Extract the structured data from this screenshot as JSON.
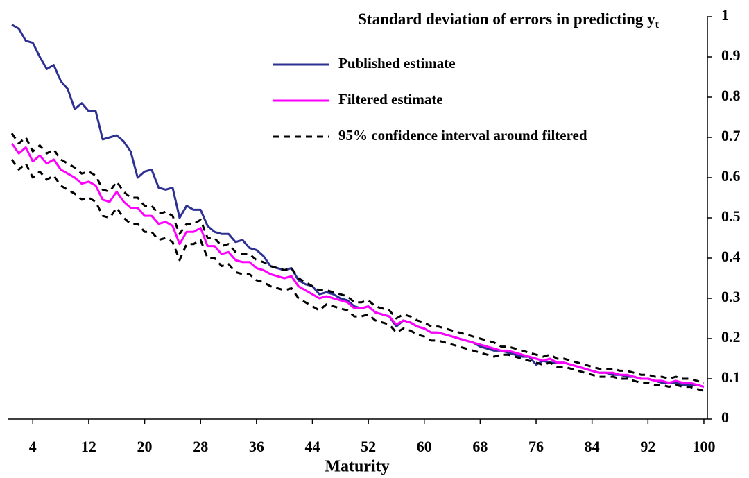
{
  "chart_data": {
    "type": "line",
    "title": "Standard deviation of errors in predicting y",
    "title_subscript": "t",
    "x_label": "Maturity",
    "xlim": [
      0.5,
      100.5
    ],
    "xticks": [
      4,
      12,
      20,
      28,
      36,
      44,
      52,
      60,
      68,
      76,
      84,
      92,
      100
    ],
    "ylim": [
      0,
      1
    ],
    "yticks": [
      0,
      0.1,
      0.2,
      0.3,
      0.4,
      0.5,
      0.6,
      0.7,
      0.8,
      0.9,
      1
    ],
    "y_axis_side": "right",
    "legend": "top-center",
    "x": [
      1,
      2,
      3,
      4,
      5,
      6,
      7,
      8,
      9,
      10,
      11,
      12,
      13,
      14,
      15,
      16,
      17,
      18,
      19,
      20,
      21,
      22,
      23,
      24,
      25,
      26,
      27,
      28,
      29,
      30,
      31,
      32,
      33,
      34,
      35,
      36,
      37,
      38,
      39,
      40,
      41,
      42,
      43,
      44,
      45,
      46,
      47,
      48,
      49,
      50,
      51,
      52,
      53,
      54,
      55,
      56,
      57,
      58,
      59,
      60,
      61,
      62,
      63,
      64,
      65,
      66,
      67,
      68,
      69,
      70,
      71,
      72,
      73,
      74,
      75,
      76,
      77,
      78,
      79,
      80,
      81,
      82,
      83,
      84,
      85,
      86,
      87,
      88,
      89,
      90,
      91,
      92,
      93,
      94,
      95,
      96,
      97,
      98,
      99,
      100
    ],
    "series": [
      {
        "name": "Published estimate",
        "color": "#2e3192",
        "values": [
          0.98,
          0.97,
          0.94,
          0.935,
          0.9,
          0.87,
          0.88,
          0.84,
          0.82,
          0.77,
          0.785,
          0.765,
          0.765,
          0.695,
          0.7,
          0.705,
          0.69,
          0.665,
          0.6,
          0.615,
          0.62,
          0.575,
          0.57,
          0.575,
          0.5,
          0.53,
          0.52,
          0.52,
          0.48,
          0.465,
          0.46,
          0.46,
          0.44,
          0.445,
          0.425,
          0.42,
          0.405,
          0.38,
          0.375,
          0.37,
          0.375,
          0.345,
          0.335,
          0.33,
          0.31,
          0.315,
          0.31,
          0.3,
          0.295,
          0.28,
          0.275,
          0.28,
          0.265,
          0.26,
          0.255,
          0.23,
          0.245,
          0.24,
          0.23,
          0.225,
          0.215,
          0.215,
          0.21,
          0.205,
          0.2,
          0.195,
          0.19,
          0.18,
          0.175,
          0.17,
          0.17,
          0.165,
          0.16,
          0.155,
          0.155,
          0.135,
          0.145,
          0.14,
          0.14,
          0.14,
          0.135,
          0.13,
          0.125,
          0.12,
          0.115,
          0.115,
          0.11,
          0.11,
          0.105,
          0.105,
          0.1,
          0.1,
          0.095,
          0.09,
          0.09,
          0.09,
          0.085,
          0.085,
          0.085,
          0.08
        ]
      },
      {
        "name": "Filtered estimate",
        "color": "#ff00ff",
        "values": [
          0.685,
          0.66,
          0.675,
          0.64,
          0.655,
          0.635,
          0.645,
          0.62,
          0.61,
          0.6,
          0.585,
          0.59,
          0.58,
          0.545,
          0.54,
          0.565,
          0.54,
          0.525,
          0.525,
          0.505,
          0.505,
          0.485,
          0.49,
          0.48,
          0.435,
          0.465,
          0.465,
          0.475,
          0.43,
          0.43,
          0.41,
          0.415,
          0.395,
          0.39,
          0.39,
          0.375,
          0.37,
          0.36,
          0.355,
          0.35,
          0.355,
          0.33,
          0.32,
          0.31,
          0.3,
          0.305,
          0.3,
          0.295,
          0.29,
          0.275,
          0.275,
          0.28,
          0.265,
          0.26,
          0.255,
          0.235,
          0.245,
          0.24,
          0.23,
          0.225,
          0.215,
          0.215,
          0.21,
          0.205,
          0.2,
          0.195,
          0.19,
          0.185,
          0.18,
          0.175,
          0.17,
          0.17,
          0.165,
          0.16,
          0.155,
          0.15,
          0.145,
          0.15,
          0.14,
          0.14,
          0.135,
          0.13,
          0.125,
          0.12,
          0.115,
          0.115,
          0.115,
          0.11,
          0.11,
          0.105,
          0.1,
          0.1,
          0.095,
          0.095,
          0.09,
          0.095,
          0.09,
          0.09,
          0.085,
          0.08
        ]
      },
      {
        "name": "95% confidence interval around filtered",
        "color": "#000000",
        "dashed": true,
        "upper": [
          0.71,
          0.685,
          0.7,
          0.665,
          0.68,
          0.66,
          0.67,
          0.645,
          0.635,
          0.625,
          0.61,
          0.615,
          0.605,
          0.57,
          0.565,
          0.59,
          0.565,
          0.55,
          0.55,
          0.53,
          0.53,
          0.51,
          0.515,
          0.505,
          0.46,
          0.485,
          0.485,
          0.495,
          0.45,
          0.45,
          0.43,
          0.435,
          0.415,
          0.41,
          0.41,
          0.395,
          0.39,
          0.38,
          0.375,
          0.37,
          0.375,
          0.35,
          0.34,
          0.33,
          0.32,
          0.32,
          0.315,
          0.31,
          0.305,
          0.29,
          0.29,
          0.295,
          0.28,
          0.275,
          0.27,
          0.25,
          0.26,
          0.255,
          0.245,
          0.24,
          0.23,
          0.23,
          0.225,
          0.22,
          0.215,
          0.21,
          0.205,
          0.2,
          0.195,
          0.19,
          0.18,
          0.18,
          0.175,
          0.17,
          0.165,
          0.16,
          0.155,
          0.16,
          0.15,
          0.15,
          0.145,
          0.14,
          0.135,
          0.13,
          0.125,
          0.125,
          0.125,
          0.12,
          0.12,
          0.115,
          0.11,
          0.11,
          0.105,
          0.105,
          0.1,
          0.105,
          0.1,
          0.1,
          0.095,
          0.09
        ],
        "lower": [
          0.645,
          0.62,
          0.635,
          0.6,
          0.615,
          0.595,
          0.605,
          0.58,
          0.57,
          0.56,
          0.545,
          0.55,
          0.54,
          0.505,
          0.5,
          0.525,
          0.5,
          0.485,
          0.485,
          0.465,
          0.465,
          0.445,
          0.45,
          0.44,
          0.395,
          0.435,
          0.435,
          0.445,
          0.4,
          0.4,
          0.38,
          0.385,
          0.365,
          0.36,
          0.36,
          0.345,
          0.34,
          0.33,
          0.325,
          0.32,
          0.325,
          0.3,
          0.29,
          0.28,
          0.27,
          0.285,
          0.28,
          0.275,
          0.27,
          0.255,
          0.255,
          0.26,
          0.245,
          0.24,
          0.235,
          0.215,
          0.225,
          0.22,
          0.21,
          0.205,
          0.195,
          0.195,
          0.19,
          0.185,
          0.18,
          0.175,
          0.17,
          0.165,
          0.16,
          0.155,
          0.16,
          0.16,
          0.155,
          0.15,
          0.145,
          0.14,
          0.135,
          0.14,
          0.13,
          0.13,
          0.125,
          0.12,
          0.115,
          0.11,
          0.105,
          0.105,
          0.105,
          0.1,
          0.1,
          0.095,
          0.09,
          0.09,
          0.085,
          0.085,
          0.08,
          0.085,
          0.08,
          0.08,
          0.075,
          0.07
        ]
      }
    ]
  }
}
